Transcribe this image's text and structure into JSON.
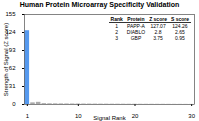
{
  "chart_data": {
    "type": "bar",
    "title": "Human Protein Microarray Specificity Validation",
    "xlabel": "Signal Rank",
    "ylabel": "Strength of Signal (Z score)",
    "x": [
      1,
      2,
      3,
      4,
      5,
      6,
      7,
      8,
      9,
      10,
      11,
      12,
      13,
      14,
      15,
      16,
      17,
      18,
      19,
      20,
      21,
      22,
      23,
      24,
      25,
      26,
      27,
      28,
      29,
      30
    ],
    "values": [
      127.07,
      2.8,
      3.75,
      1.5,
      1.2,
      1.1,
      1.0,
      0.9,
      0.85,
      0.8,
      0.75,
      0.7,
      0.65,
      0.6,
      0.55,
      0.5,
      0.48,
      0.45,
      0.42,
      0.4,
      0.38,
      0.35,
      0.32,
      0.3,
      0.28,
      0.25,
      0.22,
      0.2,
      0.18,
      0.15
    ],
    "colors": [
      "#5599ee",
      "#aaaaaa",
      "#aaaaaa",
      "#aaaaaa",
      "#aaaaaa",
      "#aaaaaa",
      "#aaaaaa",
      "#aaaaaa",
      "#aaaaaa",
      "#aaaaaa",
      "#aaaaaa",
      "#aaaaaa",
      "#aaaaaa",
      "#aaaaaa",
      "#aaaaaa",
      "#aaaaaa",
      "#aaaaaa",
      "#aaaaaa",
      "#aaaaaa",
      "#aaaaaa",
      "#aaaaaa",
      "#aaaaaa",
      "#aaaaaa",
      "#aaaaaa",
      "#aaaaaa",
      "#aaaaaa",
      "#aaaaaa",
      "#aaaaaa",
      "#aaaaaa",
      "#aaaaaa"
    ],
    "xlim": [
      0.5,
      30.5
    ],
    "xticks": [
      1,
      10,
      20,
      30
    ],
    "ylim": [
      0,
      155
    ],
    "yticks": [
      0,
      31,
      62,
      93,
      124,
      155
    ],
    "table": {
      "columns": [
        "Rank",
        "Protein",
        "Z score",
        "S score"
      ],
      "rows": [
        [
          "1",
          "PAPP-A",
          "127.07",
          "124.26"
        ],
        [
          "2",
          "DIABLO",
          "2.8",
          "2.65"
        ],
        [
          "3",
          "GBP",
          "3.75",
          "0.95"
        ]
      ]
    }
  }
}
